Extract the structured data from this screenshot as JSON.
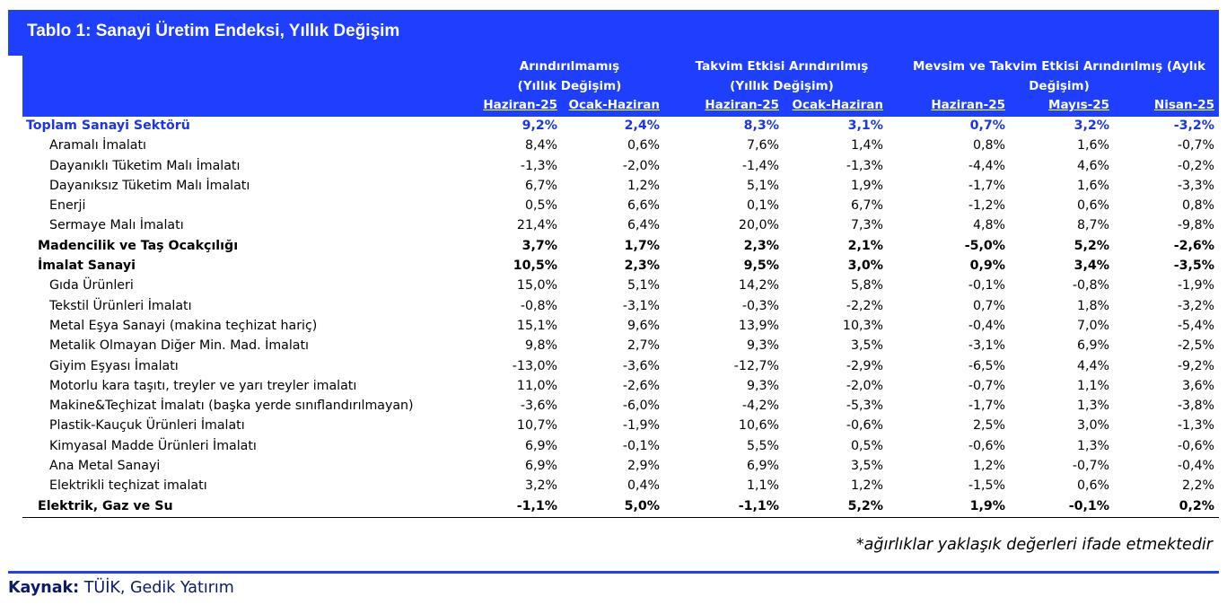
{
  "title": "Tablo 1: Sanayi Üretim Endeksi, Yıllık Değişim",
  "groups": [
    {
      "line1": "Arındırılmamış",
      "line2": "(Yıllık Değişim)"
    },
    {
      "line1": "Takvim Etkisi Arındırılmış",
      "line2": "(Yıllık Değişim)"
    },
    {
      "line1": "Mevsim ve Takvim Etkisi Arındırılmış (Aylık",
      "line2": "Değişim)"
    }
  ],
  "columns": [
    "Haziran-25",
    "Ocak-Haziran",
    "Haziran-25",
    "Ocak-Haziran",
    "Haziran-25",
    "Mayıs-25",
    "Nisan-25"
  ],
  "rows": [
    {
      "label": "Toplam Sanayi Sektörü",
      "style": "total",
      "values": [
        "9,2%",
        "2,4%",
        "8,3%",
        "3,1%",
        "0,7%",
        "3,2%",
        "-3,2%"
      ]
    },
    {
      "label": "Aramalı İmalatı",
      "style": "item",
      "values": [
        "8,4%",
        "0,6%",
        "7,6%",
        "1,4%",
        "0,8%",
        "1,6%",
        "-0,7%"
      ]
    },
    {
      "label": "Dayanıklı Tüketim Malı İmalatı",
      "style": "item",
      "values": [
        "-1,3%",
        "-2,0%",
        "-1,4%",
        "-1,3%",
        "-4,4%",
        "4,6%",
        "-0,2%"
      ]
    },
    {
      "label": "Dayanıksız Tüketim Malı İmalatı",
      "style": "item",
      "values": [
        "6,7%",
        "1,2%",
        "5,1%",
        "1,9%",
        "-1,7%",
        "1,6%",
        "-3,3%"
      ]
    },
    {
      "label": "Enerji",
      "style": "item",
      "values": [
        "0,5%",
        "6,6%",
        "0,1%",
        "6,7%",
        "-1,2%",
        "0,6%",
        "0,8%"
      ]
    },
    {
      "label": "Sermaye Malı İmalatı",
      "style": "item",
      "values": [
        "21,4%",
        "6,4%",
        "20,0%",
        "7,3%",
        "4,8%",
        "8,7%",
        "-9,8%"
      ]
    },
    {
      "label": "Madencilik ve Taş Ocakçılığı",
      "style": "sub-total",
      "values": [
        "3,7%",
        "1,7%",
        "2,3%",
        "2,1%",
        "-5,0%",
        "5,2%",
        "-2,6%"
      ]
    },
    {
      "label": "İmalat Sanayi",
      "style": "sub-total",
      "values": [
        "10,5%",
        "2,3%",
        "9,5%",
        "3,0%",
        "0,9%",
        "3,4%",
        "-3,5%"
      ]
    },
    {
      "label": "Gıda Ürünleri",
      "style": "item",
      "values": [
        "15,0%",
        "5,1%",
        "14,2%",
        "5,8%",
        "-0,1%",
        "-0,8%",
        "-1,9%"
      ]
    },
    {
      "label": "Tekstil Ürünleri İmalatı",
      "style": "item",
      "values": [
        "-0,8%",
        "-3,1%",
        "-0,3%",
        "-2,2%",
        "0,7%",
        "1,8%",
        "-3,2%"
      ]
    },
    {
      "label": "Metal Eşya Sanayi (makina teçhizat hariç)",
      "style": "item",
      "values": [
        "15,1%",
        "9,6%",
        "13,9%",
        "10,3%",
        "-0,4%",
        "7,0%",
        "-5,4%"
      ]
    },
    {
      "label": "Metalik Olmayan Diğer Min. Mad. İmalatı",
      "style": "item",
      "values": [
        "9,8%",
        "2,7%",
        "9,3%",
        "3,5%",
        "-3,1%",
        "6,9%",
        "-2,5%"
      ]
    },
    {
      "label": "Giyim Eşyası İmalatı",
      "style": "item",
      "values": [
        "-13,0%",
        "-3,6%",
        "-12,7%",
        "-2,9%",
        "-6,5%",
        "4,4%",
        "-9,2%"
      ]
    },
    {
      "label": "Motorlu kara taşıtı, treyler ve yarı treyler imalatı",
      "style": "item",
      "values": [
        "11,0%",
        "-2,6%",
        "9,3%",
        "-2,0%",
        "-0,7%",
        "1,1%",
        "3,6%"
      ]
    },
    {
      "label": "Makine&Teçhizat İmalatı (başka yerde sınıflandırılmayan)",
      "style": "item",
      "values": [
        "-3,6%",
        "-6,0%",
        "-4,2%",
        "-5,3%",
        "-1,7%",
        "1,3%",
        "-3,8%"
      ]
    },
    {
      "label": "Plastik-Kauçuk Ürünleri İmalatı",
      "style": "item",
      "values": [
        "10,7%",
        "-1,9%",
        "10,6%",
        "-0,6%",
        "2,5%",
        "3,0%",
        "-1,3%"
      ]
    },
    {
      "label": "Kimyasal Madde Ürünleri İmalatı",
      "style": "item",
      "values": [
        "6,9%",
        "-0,1%",
        "5,5%",
        "0,5%",
        "-0,6%",
        "1,3%",
        "-0,6%"
      ]
    },
    {
      "label": "Ana Metal Sanayi",
      "style": "item",
      "values": [
        "6,9%",
        "2,9%",
        "6,9%",
        "3,5%",
        "1,2%",
        "-0,7%",
        "-0,4%"
      ]
    },
    {
      "label": "Elektrikli teçhizat imalatı",
      "style": "item",
      "values": [
        "3,2%",
        "0,4%",
        "1,1%",
        "1,2%",
        "-1,5%",
        "0,6%",
        "2,2%"
      ]
    },
    {
      "label": "Elektrik, Gaz ve Su",
      "style": "sub-total",
      "values": [
        "-1,1%",
        "5,0%",
        "-1,1%",
        "5,2%",
        "1,9%",
        "-0,1%",
        "0,2%"
      ]
    }
  ],
  "note": "*ağırlıklar yaklaşık değerleri ifade etmektedir",
  "source": {
    "label": "Kaynak:",
    "text": " TÜİK, Gedik Yatırım"
  }
}
